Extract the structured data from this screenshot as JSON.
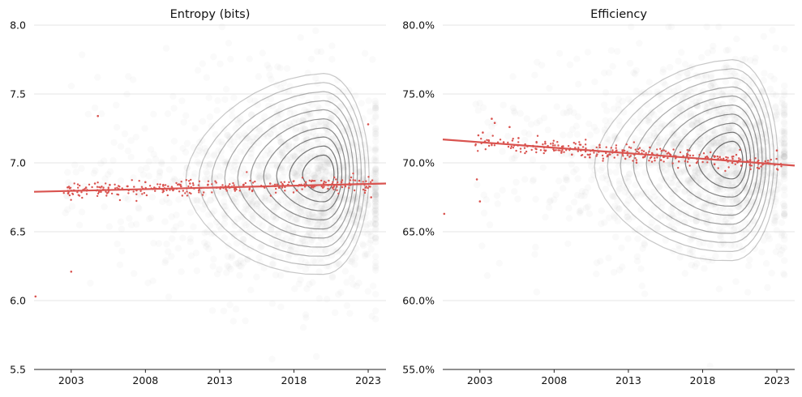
{
  "chart_data": [
    {
      "type": "scatter",
      "title": "Entropy (bits)",
      "xlabel": "",
      "ylabel": "",
      "xlim": [
        2000.5,
        2024.2
      ],
      "ylim": [
        5.5,
        8.0
      ],
      "x_ticks": [
        2003,
        2008,
        2013,
        2018,
        2023
      ],
      "x_tick_labels": [
        "2003",
        "2008",
        "2013",
        "2018",
        "2023"
      ],
      "y_ticks": [
        5.5,
        6.0,
        6.5,
        7.0,
        7.5,
        8.0
      ],
      "y_tick_labels": [
        "5.5",
        "6.0",
        "6.5",
        "7.0",
        "7.5",
        "8.0"
      ],
      "grid": "horizontal",
      "background_cloud": {
        "x_range": [
          2002.5,
          2023.5
        ],
        "y_center": 6.85,
        "y_spread": 0.35,
        "density_peak": [
          2020,
          6.9
        ],
        "color": "#888888"
      },
      "density_contours": {
        "center": [
          2020,
          6.92
        ],
        "color": "#222222",
        "levels": 10
      },
      "daily_means": {
        "color": "#d9534f",
        "x": [
          2000.6,
          2002.8,
          2003.2,
          2004.0,
          2004.6,
          2005.0,
          2005.6,
          2006.2,
          2006.8,
          2007.4,
          2008.0,
          2008.6,
          2009.2,
          2009.8,
          2010.4,
          2011.0,
          2011.6,
          2012.2,
          2012.8,
          2013.4,
          2014.0,
          2014.6,
          2015.2,
          2015.8,
          2016.4,
          2017.0,
          2017.6,
          2018.2,
          2018.8,
          2019.4,
          2020.0,
          2020.6,
          2021.2,
          2021.8,
          2022.4,
          2022.8,
          2023.0,
          2023.2,
          2003.0,
          2004.8
        ],
        "y": [
          6.03,
          6.78,
          6.8,
          6.82,
          6.85,
          6.79,
          6.84,
          6.81,
          6.83,
          6.8,
          6.86,
          6.82,
          6.84,
          6.81,
          6.83,
          6.85,
          6.8,
          6.84,
          6.82,
          6.83,
          6.81,
          6.84,
          6.8,
          6.83,
          6.85,
          6.82,
          6.84,
          6.8,
          6.86,
          6.83,
          6.85,
          6.82,
          6.86,
          6.84,
          6.87,
          6.8,
          7.28,
          6.75,
          6.21,
          7.34
        ]
      },
      "trend": {
        "color": "#d9534f",
        "x": [
          2000.5,
          2024.2
        ],
        "y": [
          6.79,
          6.85
        ]
      }
    },
    {
      "type": "scatter",
      "title": "Efficiency",
      "xlabel": "",
      "ylabel": "",
      "xlim": [
        2000.5,
        2024.2
      ],
      "ylim": [
        55.0,
        80.0
      ],
      "x_ticks": [
        2003,
        2008,
        2013,
        2018,
        2023
      ],
      "x_tick_labels": [
        "2003",
        "2008",
        "2013",
        "2018",
        "2023"
      ],
      "y_ticks": [
        55,
        60,
        65,
        70,
        75,
        80
      ],
      "y_tick_labels": [
        "55.0%",
        "60.0%",
        "65.0%",
        "70.0%",
        "75.0%",
        "80.0%"
      ],
      "grid": "horizontal",
      "background_cloud": {
        "x_range": [
          2002.5,
          2023.5
        ],
        "y_center": 70.2,
        "y_spread": 3.2,
        "density_peak": [
          2020,
          70.2
        ],
        "color": "#888888"
      },
      "density_contours": {
        "center": [
          2020,
          70.2
        ],
        "color": "#222222",
        "levels": 10
      },
      "daily_means": {
        "color": "#d9534f",
        "x": [
          2000.6,
          2002.8,
          2003.2,
          2003.6,
          2004.0,
          2004.6,
          2005.0,
          2005.6,
          2006.2,
          2006.8,
          2007.4,
          2008.0,
          2008.6,
          2009.2,
          2009.8,
          2010.4,
          2011.0,
          2011.6,
          2012.2,
          2012.8,
          2013.4,
          2014.0,
          2014.6,
          2015.2,
          2015.8,
          2016.4,
          2017.0,
          2017.6,
          2018.2,
          2018.8,
          2019.4,
          2020.0,
          2020.6,
          2021.2,
          2021.8,
          2022.4,
          2023.0,
          2003.0,
          2003.8,
          2002.9
        ],
        "y": [
          66.3,
          68.8,
          72.2,
          71.6,
          72.9,
          71.5,
          72.6,
          71.8,
          71.2,
          71.0,
          71.4,
          70.9,
          71.2,
          70.6,
          70.9,
          70.4,
          70.8,
          70.5,
          70.9,
          70.3,
          70.6,
          70.4,
          70.7,
          70.2,
          70.5,
          70.1,
          70.6,
          70.0,
          70.4,
          69.9,
          70.3,
          70.0,
          69.8,
          70.2,
          69.6,
          70.0,
          70.9,
          67.2,
          73.2,
          72.0
        ]
      },
      "trend": {
        "color": "#d9534f",
        "x": [
          2000.5,
          2024.2
        ],
        "y": [
          71.7,
          69.8
        ]
      }
    }
  ]
}
